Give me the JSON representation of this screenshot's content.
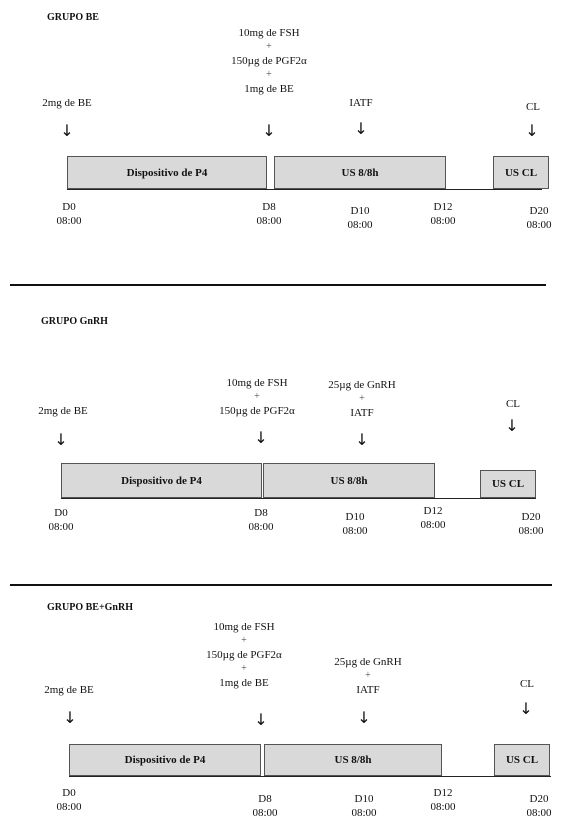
{
  "groups": [
    {
      "title": "GRUPO BE",
      "annotations": {
        "d0": [
          "2mg de BE"
        ],
        "d8": [
          "10mg de FSH",
          "+",
          "150µg de PGF2α",
          "+",
          "1mg de BE"
        ],
        "d10": [
          "IATF"
        ],
        "d20": [
          "CL"
        ]
      },
      "boxes": {
        "p4": "Dispositivo de P4",
        "us": "US  8/8h",
        "uscl": "US  CL"
      },
      "ticks": {
        "d0": [
          "D0",
          "08:00"
        ],
        "d8": [
          "D8",
          "08:00"
        ],
        "d10": [
          "D10",
          "08:00"
        ],
        "d12": [
          "D12",
          "08:00"
        ],
        "d20": [
          "D20",
          "08:00"
        ]
      }
    },
    {
      "title": "GRUPO GnRH",
      "annotations": {
        "d0": [
          "2mg de BE"
        ],
        "d8": [
          "10mg de FSH",
          "+",
          "150µg de PGF2α"
        ],
        "d10": [
          "25µg de GnRH",
          "+",
          "IATF"
        ],
        "d20": [
          "CL"
        ]
      },
      "boxes": {
        "p4": "Dispositivo de P4",
        "us": "US  8/8h",
        "uscl": "US  CL"
      },
      "ticks": {
        "d0": [
          "D0",
          "08:00"
        ],
        "d8": [
          "D8",
          "08:00"
        ],
        "d10": [
          "D10",
          "08:00"
        ],
        "d12": [
          "D12",
          "08:00"
        ],
        "d20": [
          "D20",
          "08:00"
        ]
      }
    },
    {
      "title": "GRUPO BE+GnRH",
      "annotations": {
        "d0": [
          "2mg de BE"
        ],
        "d8": [
          "10mg de FSH",
          "+",
          "150µg de PGF2α",
          "+",
          "1mg de BE"
        ],
        "d10": [
          "25µg de GnRH",
          "+",
          "IATF"
        ],
        "d20": [
          "CL"
        ]
      },
      "boxes": {
        "p4": "Dispositivo de P4",
        "us": "US  8/8h",
        "uscl": "US  CL"
      },
      "ticks": {
        "d0": [
          "D0",
          "08:00"
        ],
        "d8": [
          "D8",
          "08:00"
        ],
        "d10": [
          "D10",
          "08:00"
        ],
        "d12": [
          "D12",
          "08:00"
        ],
        "d20": [
          "D20",
          "08:00"
        ]
      }
    }
  ]
}
